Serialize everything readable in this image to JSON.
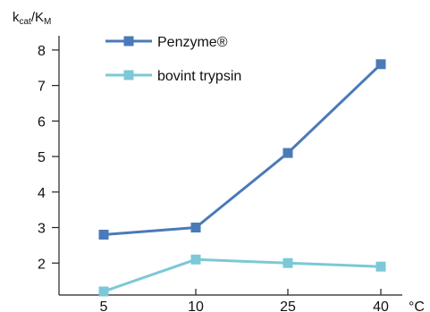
{
  "chart_data": {
    "type": "line",
    "ylabel": {
      "main": "k",
      "sub1": "cat",
      "slash": "/K",
      "sub2": "M"
    },
    "xunit": "°C",
    "categories": [
      "5",
      "10",
      "25",
      "40"
    ],
    "yticks": [
      "2",
      "3",
      "4",
      "5",
      "6",
      "7",
      "8"
    ],
    "ylim": [
      1.1,
      8.3
    ],
    "series": [
      {
        "name": "Penzyme®",
        "values": [
          2.8,
          3.0,
          5.1,
          7.6
        ],
        "color": "#4a7ab8",
        "marker": "square"
      },
      {
        "name": "bovint trypsin",
        "values": [
          1.2,
          2.1,
          2.0,
          1.9
        ],
        "color": "#7cc8d6",
        "marker": "square"
      }
    ],
    "legend": "top-left",
    "grid": false
  }
}
